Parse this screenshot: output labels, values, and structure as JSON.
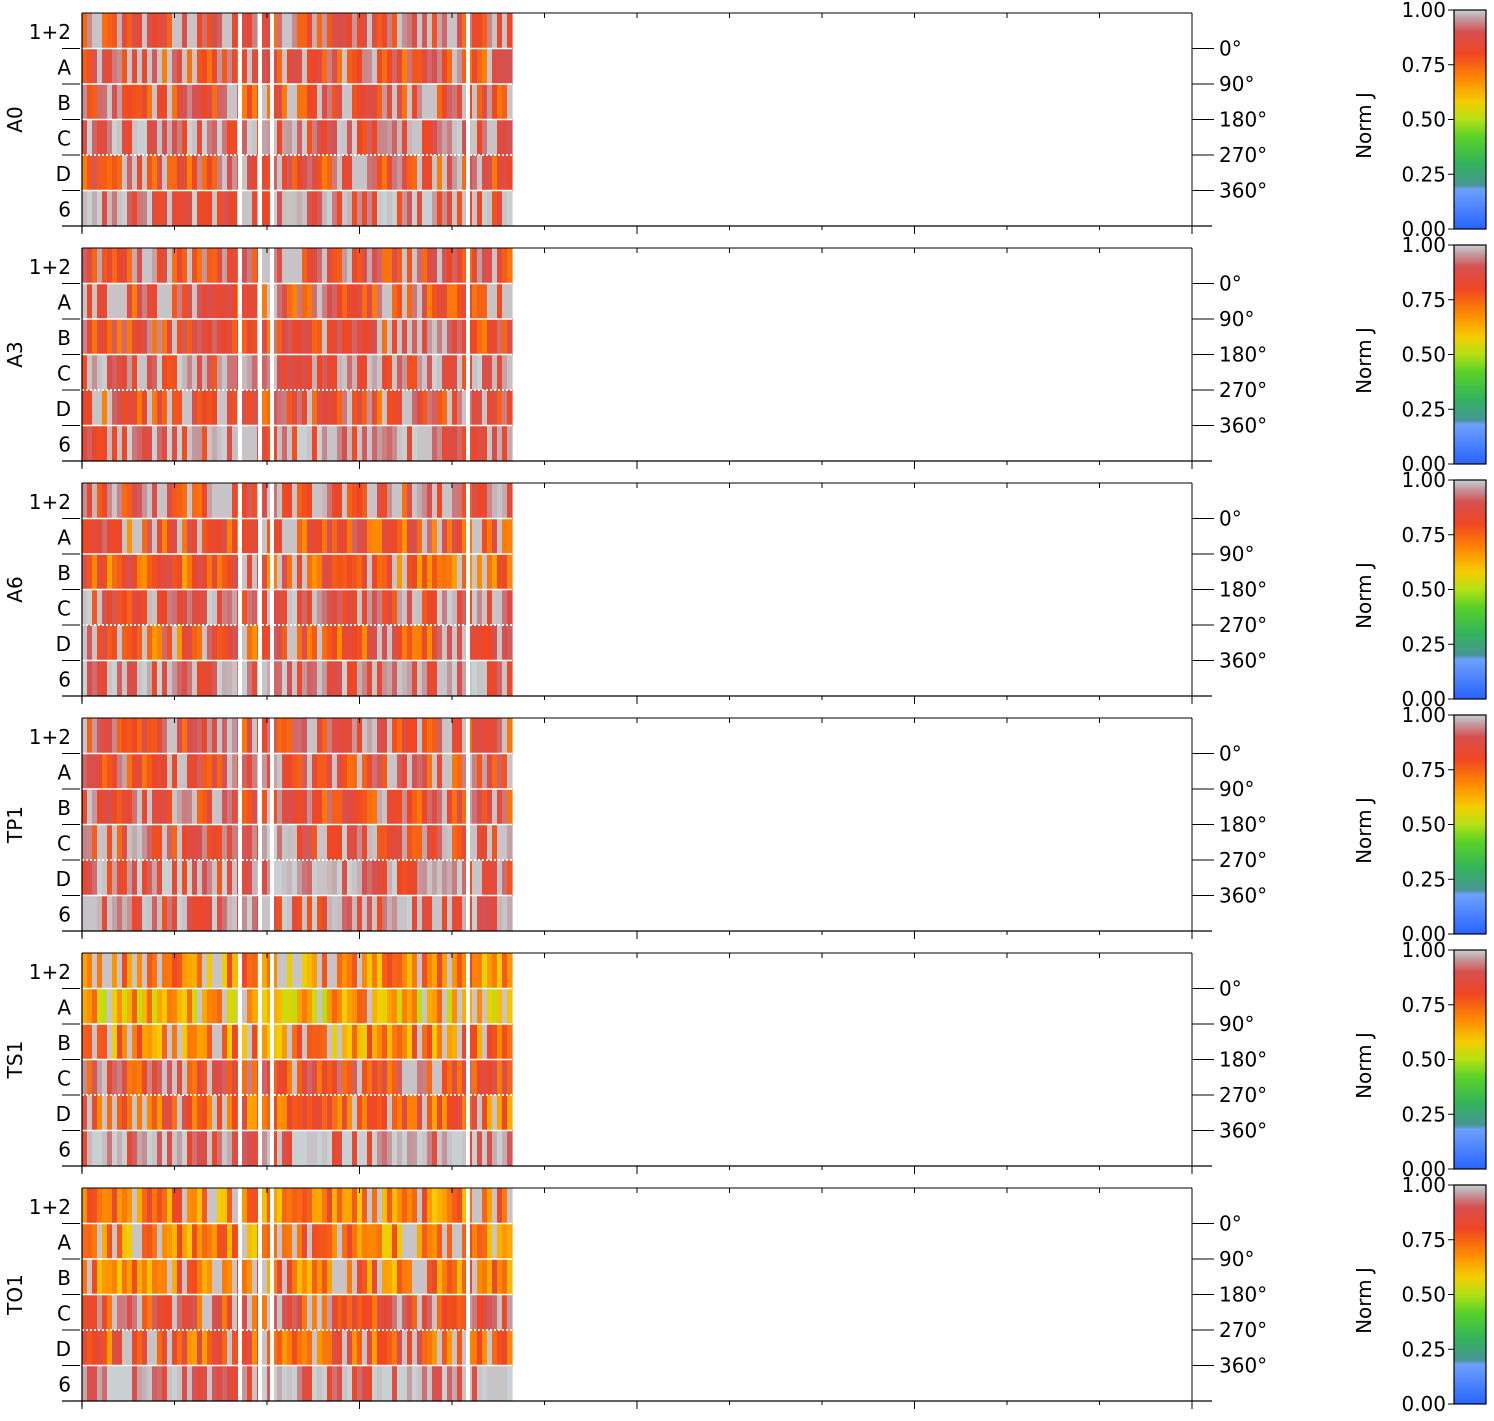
{
  "chart_data": [
    {
      "type": "heatmap",
      "panel": "A0",
      "rows": [
        "1+2",
        "A",
        "B",
        "C",
        "D",
        "6"
      ],
      "right_ticks": [
        "0°",
        "90°",
        "180°",
        "270°",
        "360°"
      ],
      "colorbar": {
        "label": "Norm J",
        "ticks": [
          "1.00",
          "0.75",
          "0.50",
          "0.25",
          "0.00"
        ],
        "range": [
          0,
          1
        ]
      },
      "row_mean_values": [
        0.88,
        0.86,
        0.86,
        0.93,
        0.86,
        0.94
      ]
    },
    {
      "type": "heatmap",
      "panel": "A3",
      "rows": [
        "1+2",
        "A",
        "B",
        "C",
        "D",
        "6"
      ],
      "right_ticks": [
        "0°",
        "90°",
        "180°",
        "270°",
        "360°"
      ],
      "colorbar": {
        "label": "Norm J",
        "ticks": [
          "1.00",
          "0.75",
          "0.50",
          "0.25",
          "0.00"
        ],
        "range": [
          0,
          1
        ]
      },
      "row_mean_values": [
        0.87,
        0.85,
        0.86,
        0.93,
        0.85,
        0.94
      ]
    },
    {
      "type": "heatmap",
      "panel": "A6",
      "rows": [
        "1+2",
        "A",
        "B",
        "C",
        "D",
        "6"
      ],
      "right_ticks": [
        "0°",
        "90°",
        "180°",
        "270°",
        "360°"
      ],
      "colorbar": {
        "label": "Norm J",
        "ticks": [
          "1.00",
          "0.75",
          "0.50",
          "0.25",
          "0.00"
        ],
        "range": [
          0,
          1
        ]
      },
      "row_mean_values": [
        0.88,
        0.82,
        0.8,
        0.91,
        0.82,
        0.95
      ]
    },
    {
      "type": "heatmap",
      "panel": "TP1",
      "rows": [
        "1+2",
        "A",
        "B",
        "C",
        "D",
        "6"
      ],
      "right_ticks": [
        "0°",
        "90°",
        "180°",
        "270°",
        "360°"
      ],
      "colorbar": {
        "label": "Norm J",
        "ticks": [
          "1.00",
          "0.75",
          "0.50",
          "0.25",
          "0.00"
        ],
        "range": [
          0,
          1
        ]
      },
      "row_mean_values": [
        0.87,
        0.87,
        0.87,
        0.9,
        0.93,
        0.93
      ]
    },
    {
      "type": "heatmap",
      "panel": "TS1",
      "rows": [
        "1+2",
        "A",
        "B",
        "C",
        "D",
        "6"
      ],
      "right_ticks": [
        "0°",
        "90°",
        "180°",
        "270°",
        "360°"
      ],
      "colorbar": {
        "label": "Norm J",
        "ticks": [
          "1.00",
          "0.75",
          "0.50",
          "0.25",
          "0.00"
        ],
        "range": [
          0,
          1
        ]
      },
      "row_mean_values": [
        0.72,
        0.66,
        0.72,
        0.86,
        0.78,
        0.97
      ]
    },
    {
      "type": "heatmap",
      "panel": "TO1",
      "rows": [
        "1+2",
        "A",
        "B",
        "C",
        "D",
        "6"
      ],
      "right_ticks": [
        "0°",
        "90°",
        "180°",
        "270°",
        "360°"
      ],
      "colorbar": {
        "label": "Norm J",
        "ticks": [
          "1.00",
          "0.75",
          "0.50",
          "0.25",
          "0.00"
        ],
        "range": [
          0,
          1
        ]
      },
      "row_mean_values": [
        0.74,
        0.72,
        0.74,
        0.86,
        0.8,
        0.97
      ]
    }
  ]
}
